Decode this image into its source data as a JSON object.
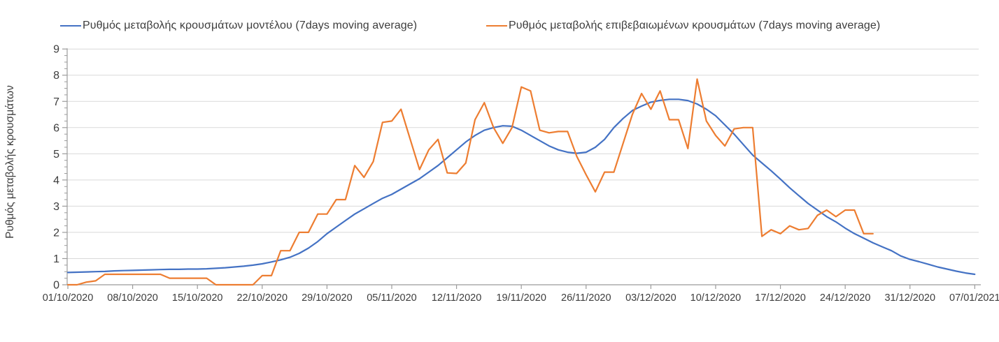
{
  "chart_data": {
    "type": "line",
    "title": "",
    "xlabel": "",
    "ylabel": "Ρυθμός μεταβολής κρουσμάτων",
    "ylim": [
      0,
      9
    ],
    "y_major_tick_step": 1,
    "y_minor_tick_step": 0.25,
    "grid": "horizontal-major-only",
    "legend_position": "top",
    "gridline_color": "#D9D9D9",
    "axis_color": "#9B9B9B",
    "tick_label_color": "#3D3D3D",
    "x_tick_labels": [
      "01/10/2020",
      "08/10/2020",
      "15/10/2020",
      "22/10/2020",
      "29/10/2020",
      "05/11/2020",
      "12/11/2020",
      "19/11/2020",
      "26/11/2020",
      "03/12/2020",
      "10/12/2020",
      "17/12/2020",
      "24/12/2020",
      "31/12/2020",
      "07/01/2021"
    ],
    "x_tick_interval_days": 7,
    "x_total_days": 98,
    "series": [
      {
        "name": "Ρυθμός μεταβολής κρουσμάτων μοντέλου (7days moving average)",
        "color": "#4472C4",
        "start_day": 0,
        "values": [
          0.47,
          0.48,
          0.49,
          0.5,
          0.51,
          0.53,
          0.54,
          0.55,
          0.56,
          0.57,
          0.58,
          0.59,
          0.59,
          0.6,
          0.6,
          0.61,
          0.63,
          0.65,
          0.68,
          0.71,
          0.75,
          0.8,
          0.87,
          0.95,
          1.05,
          1.2,
          1.4,
          1.65,
          1.95,
          2.2,
          2.45,
          2.7,
          2.9,
          3.1,
          3.3,
          3.45,
          3.65,
          3.85,
          4.05,
          4.3,
          4.55,
          4.85,
          5.15,
          5.45,
          5.7,
          5.9,
          6.0,
          6.07,
          6.05,
          5.9,
          5.7,
          5.5,
          5.3,
          5.15,
          5.06,
          5.02,
          5.06,
          5.25,
          5.55,
          6.0,
          6.35,
          6.65,
          6.82,
          6.97,
          7.04,
          7.08,
          7.08,
          7.03,
          6.9,
          6.7,
          6.45,
          6.1,
          5.75,
          5.35,
          4.95,
          4.65,
          4.35,
          4.03,
          3.7,
          3.4,
          3.1,
          2.85,
          2.6,
          2.4,
          2.16,
          1.95,
          1.78,
          1.6,
          1.45,
          1.3,
          1.1,
          0.97,
          0.88,
          0.78,
          0.68,
          0.6,
          0.52,
          0.45,
          0.4
        ]
      },
      {
        "name": "Ρυθμός μεταβολής επιβεβαιωμένων κρουσμάτων (7days moving average)",
        "color": "#ED7D31",
        "start_day": 0,
        "values": [
          0.0,
          0.0,
          0.1,
          0.15,
          0.4,
          0.4,
          0.4,
          0.4,
          0.4,
          0.4,
          0.4,
          0.25,
          0.25,
          0.25,
          0.25,
          0.25,
          0.0,
          0.0,
          0.0,
          0.0,
          0.0,
          0.35,
          0.35,
          1.3,
          1.3,
          2.0,
          2.0,
          2.7,
          2.7,
          3.25,
          3.25,
          4.55,
          4.1,
          4.7,
          6.2,
          6.25,
          6.7,
          5.55,
          4.4,
          5.15,
          5.55,
          4.27,
          4.25,
          4.65,
          6.3,
          6.95,
          6.0,
          5.4,
          6.0,
          7.55,
          7.4,
          5.9,
          5.8,
          5.85,
          5.85,
          4.9,
          4.2,
          3.55,
          4.3,
          4.3,
          5.4,
          6.5,
          7.3,
          6.7,
          7.4,
          6.3,
          6.3,
          5.2,
          7.85,
          6.25,
          5.7,
          5.3,
          5.95,
          6.0,
          6.0,
          1.85,
          2.1,
          1.95,
          2.25,
          2.1,
          2.15,
          2.65,
          2.85,
          2.6,
          2.85,
          2.85,
          1.95,
          1.95
        ]
      }
    ]
  }
}
